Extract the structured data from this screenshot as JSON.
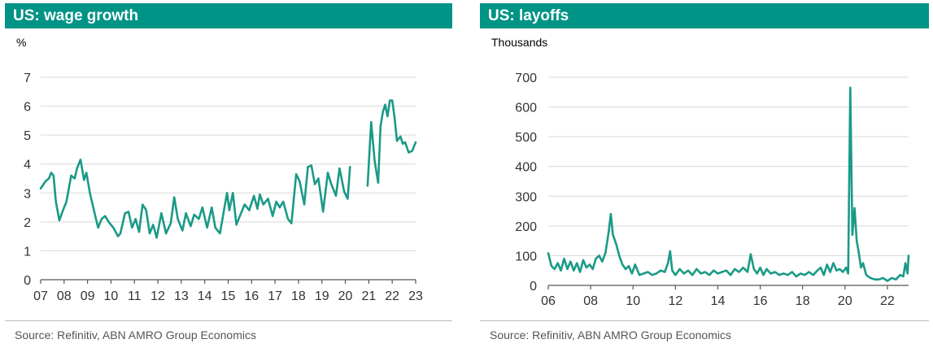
{
  "panels": [
    {
      "title": "US: wage growth",
      "source": "Source: Refinitiv, ABN AMRO Group Economics"
    },
    {
      "title": "US: layoffs",
      "source": "Source: Refinitiv, ABN AMRO Group Economics"
    }
  ],
  "chart_data": [
    {
      "type": "line",
      "title": "US: wage growth",
      "ylabel": "%",
      "xlabel": "",
      "ylim": [
        0,
        7
      ],
      "yticks": [
        0,
        1,
        2,
        3,
        4,
        5,
        6,
        7
      ],
      "xlim": [
        2007.0,
        2023.0
      ],
      "xticks": [
        {
          "value": 2007,
          "label": "07"
        },
        {
          "value": 2008,
          "label": "08"
        },
        {
          "value": 2009,
          "label": "09"
        },
        {
          "value": 2010,
          "label": "10"
        },
        {
          "value": 2011,
          "label": "11"
        },
        {
          "value": 2012,
          "label": "12"
        },
        {
          "value": 2013,
          "label": "13"
        },
        {
          "value": 2014,
          "label": "14"
        },
        {
          "value": 2015,
          "label": "15"
        },
        {
          "value": 2016,
          "label": "16"
        },
        {
          "value": 2017,
          "label": "17"
        },
        {
          "value": 2018,
          "label": "18"
        },
        {
          "value": 2019,
          "label": "19"
        },
        {
          "value": 2020,
          "label": "20"
        },
        {
          "value": 2021,
          "label": "21"
        },
        {
          "value": 2022,
          "label": "22"
        },
        {
          "value": 2023,
          "label": "23"
        }
      ],
      "grid": "horizontal",
      "color": "#1a9a86",
      "series": [
        {
          "segments": [
            {
              "x": [
                2007.0,
                2007.2,
                2007.35,
                2007.45,
                2007.55,
                2007.65,
                2007.8,
                2007.95,
                2008.1,
                2008.3,
                2008.45,
                2008.55,
                2008.7,
                2008.85,
                2008.95,
                2009.1,
                2009.3,
                2009.45,
                2009.6,
                2009.75,
                2009.9,
                2010.1,
                2010.3,
                2010.4,
                2010.6,
                2010.75,
                2010.9,
                2011.05,
                2011.2,
                2011.35,
                2011.5,
                2011.65,
                2011.8,
                2011.95,
                2012.15,
                2012.35,
                2012.55,
                2012.7,
                2012.85,
                2013.05,
                2013.2,
                2013.4,
                2013.55,
                2013.75,
                2013.9,
                2014.1,
                2014.3,
                2014.45,
                2014.65,
                2014.8,
                2014.95,
                2015.05,
                2015.2,
                2015.35,
                2015.5,
                2015.7,
                2015.9,
                2016.1,
                2016.25,
                2016.35,
                2016.5,
                2016.7,
                2016.9,
                2017.05,
                2017.2,
                2017.35,
                2017.55,
                2017.7,
                2017.9,
                2018.05,
                2018.25,
                2018.4,
                2018.55,
                2018.7,
                2018.85,
                2019.05,
                2019.25,
                2019.4,
                2019.6,
                2019.75,
                2019.95,
                2020.1,
                2020.2
              ],
              "y": [
                3.15,
                3.4,
                3.5,
                3.7,
                3.6,
                2.7,
                2.05,
                2.4,
                2.7,
                3.6,
                3.5,
                3.85,
                4.15,
                3.45,
                3.7,
                3.0,
                2.3,
                1.8,
                2.1,
                2.2,
                2.0,
                1.8,
                1.5,
                1.6,
                2.3,
                2.35,
                1.8,
                2.1,
                1.65,
                2.6,
                2.4,
                1.6,
                1.9,
                1.45,
                2.3,
                1.6,
                1.95,
                2.85,
                2.1,
                1.7,
                2.3,
                1.85,
                2.25,
                2.1,
                2.5,
                1.8,
                2.5,
                1.8,
                1.6,
                2.3,
                3.0,
                2.4,
                3.0,
                1.9,
                2.2,
                2.6,
                2.4,
                2.9,
                2.45,
                2.95,
                2.6,
                2.8,
                2.2,
                2.7,
                2.5,
                2.7,
                2.1,
                1.95,
                3.65,
                3.4,
                2.6,
                3.9,
                3.95,
                3.3,
                3.5,
                2.35,
                3.7,
                3.3,
                2.9,
                3.85,
                3.05,
                2.8,
                3.9
              ]
            },
            {
              "x": [
                2020.95,
                2021.1,
                2021.25,
                2021.4,
                2021.5,
                2021.6,
                2021.7,
                2021.8,
                2021.9,
                2022.0,
                2022.1,
                2022.2,
                2022.35,
                2022.45,
                2022.55,
                2022.7,
                2022.85,
                2023.0
              ],
              "y": [
                3.25,
                5.45,
                4.1,
                3.35,
                5.3,
                5.8,
                6.05,
                5.65,
                6.2,
                6.2,
                5.6,
                4.8,
                4.95,
                4.7,
                4.75,
                4.4,
                4.45,
                4.75
              ]
            }
          ]
        }
      ]
    },
    {
      "type": "line",
      "title": "US: layoffs",
      "ylabel": "Thousands",
      "xlabel": "",
      "ylim": [
        0,
        700
      ],
      "yticks": [
        0,
        100,
        200,
        300,
        400,
        500,
        600,
        700
      ],
      "xlim": [
        2006.0,
        2023.0
      ],
      "xticks": [
        {
          "value": 2006,
          "label": "06"
        },
        {
          "value": 2008,
          "label": "08"
        },
        {
          "value": 2010,
          "label": "10"
        },
        {
          "value": 2012,
          "label": "12"
        },
        {
          "value": 2014,
          "label": "14"
        },
        {
          "value": 2016,
          "label": "16"
        },
        {
          "value": 2018,
          "label": "18"
        },
        {
          "value": 2020,
          "label": "20"
        },
        {
          "value": 2022,
          "label": "22"
        }
      ],
      "grid": "horizontal",
      "color": "#1a9a86",
      "series": [
        {
          "segments": [
            {
              "x": [
                2006.0,
                2006.15,
                2006.3,
                2006.45,
                2006.6,
                2006.75,
                2006.9,
                2007.05,
                2007.2,
                2007.35,
                2007.5,
                2007.65,
                2007.8,
                2007.95,
                2008.1,
                2008.25,
                2008.4,
                2008.55,
                2008.7,
                2008.85,
                2008.95,
                2009.05,
                2009.2,
                2009.35,
                2009.5,
                2009.65,
                2009.8,
                2009.95,
                2010.1,
                2010.3,
                2010.5,
                2010.7,
                2010.9,
                2011.1,
                2011.3,
                2011.5,
                2011.65,
                2011.75,
                2011.85,
                2012.0,
                2012.2,
                2012.4,
                2012.6,
                2012.8,
                2013.0,
                2013.2,
                2013.4,
                2013.6,
                2013.8,
                2014.0,
                2014.2,
                2014.4,
                2014.6,
                2014.8,
                2015.0,
                2015.2,
                2015.4,
                2015.55,
                2015.7,
                2015.85,
                2016.0,
                2016.15,
                2016.3,
                2016.5,
                2016.7,
                2016.9,
                2017.1,
                2017.3,
                2017.5,
                2017.7,
                2017.9,
                2018.1,
                2018.3,
                2018.5,
                2018.7,
                2018.85,
                2019.0,
                2019.15,
                2019.3,
                2019.45,
                2019.6,
                2019.75,
                2019.9,
                2020.05,
                2020.15,
                2020.25,
                2020.35,
                2020.45,
                2020.55,
                2020.65,
                2020.75,
                2020.85,
                2021.0,
                2021.2,
                2021.4,
                2021.6,
                2021.8,
                2022.0,
                2022.2,
                2022.4,
                2022.6,
                2022.75,
                2022.85,
                2022.95,
                2023.0
              ],
              "y": [
                108,
                65,
                55,
                75,
                50,
                90,
                55,
                80,
                50,
                75,
                45,
                85,
                60,
                70,
                55,
                90,
                100,
                80,
                110,
                180,
                240,
                170,
                140,
                100,
                70,
                55,
                65,
                40,
                70,
                35,
                40,
                45,
                35,
                40,
                50,
                45,
                75,
                115,
                50,
                35,
                55,
                40,
                50,
                35,
                55,
                40,
                45,
                35,
                50,
                40,
                45,
                50,
                35,
                55,
                45,
                60,
                45,
                105,
                55,
                40,
                60,
                35,
                55,
                40,
                45,
                35,
                40,
                35,
                45,
                30,
                40,
                35,
                45,
                35,
                50,
                60,
                35,
                70,
                45,
                75,
                50,
                55,
                45,
                60,
                40,
                665,
                170,
                260,
                150,
                110,
                60,
                75,
                35,
                25,
                20,
                20,
                25,
                15,
                25,
                20,
                35,
                30,
                75,
                40,
                100
              ]
            }
          ]
        }
      ]
    }
  ]
}
